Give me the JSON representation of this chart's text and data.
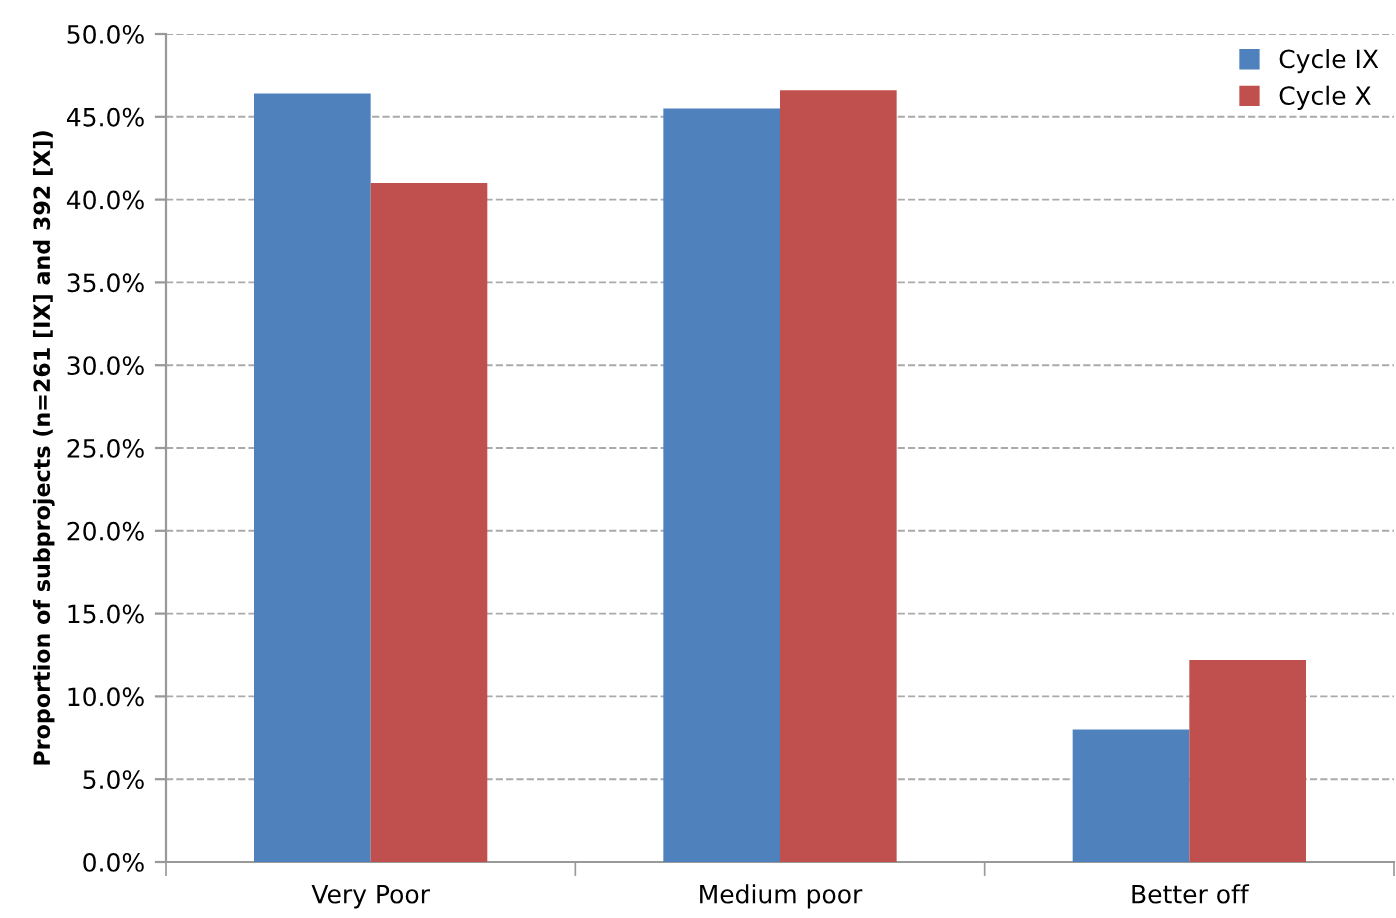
{
  "chart_data": {
    "type": "bar",
    "ylabel": "Proportion of subprojects (n=261 [IX] and 392 [X])",
    "categories": [
      "Very Poor",
      "Medium poor",
      "Better off"
    ],
    "series": [
      {
        "name": "Cycle IX",
        "color": "#4f81bd",
        "values": [
          46.4,
          45.5,
          8.0
        ]
      },
      {
        "name": "Cycle X",
        "color": "#c0504d",
        "values": [
          41.0,
          46.6,
          12.2
        ]
      }
    ],
    "ylim": [
      0,
      50
    ],
    "yticks": [
      {
        "value": 0,
        "label": "0.0%"
      },
      {
        "value": 5,
        "label": "5.0%"
      },
      {
        "value": 10,
        "label": "10.0%"
      },
      {
        "value": 15,
        "label": "15.0%"
      },
      {
        "value": 20,
        "label": "20.0%"
      },
      {
        "value": 25,
        "label": "25.0%"
      },
      {
        "value": 30,
        "label": "30.0%"
      },
      {
        "value": 35,
        "label": "35.0%"
      },
      {
        "value": 40,
        "label": "40.0%"
      },
      {
        "value": 45,
        "label": "45.0%"
      },
      {
        "value": 50,
        "label": "50.0%"
      }
    ],
    "grid": "y",
    "legend": "top right"
  }
}
